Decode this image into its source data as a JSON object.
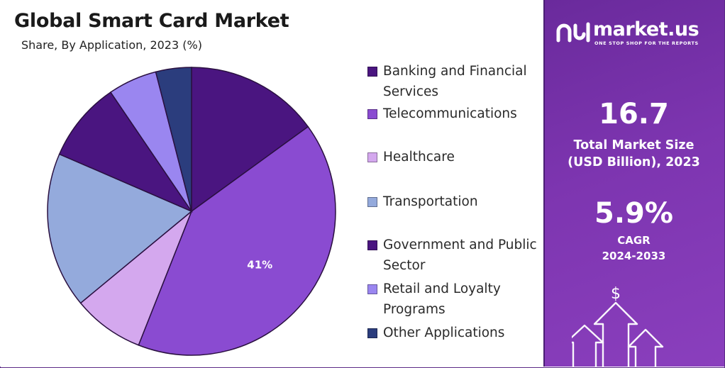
{
  "header": {
    "title": "Global Smart Card Market",
    "subtitle": "Share, By Application, 2023 (%)"
  },
  "chart_data": {
    "type": "pie",
    "title": "Global Smart Card Market",
    "subtitle": "Share, By Application, 2023 (%)",
    "legend_position": "right",
    "slices": [
      {
        "label": "Banking and Financial Services",
        "value": 15,
        "color": "#4a1580",
        "data_label": ""
      },
      {
        "label": "Telecommunications",
        "value": 41,
        "color": "#8a4bd1",
        "data_label": "41%"
      },
      {
        "label": "Healthcare",
        "value": 8,
        "color": "#d4a8ee",
        "data_label": ""
      },
      {
        "label": "Transportation",
        "value": 17.5,
        "color": "#94aadc",
        "data_label": ""
      },
      {
        "label": "Government and Public Sector",
        "value": 9,
        "color": "#4a1580",
        "data_label": ""
      },
      {
        "label": "Retail and Loyalty Programs",
        "value": 5.5,
        "color": "#9a86f0",
        "data_label": ""
      },
      {
        "label": "Other Applications",
        "value": 4,
        "color": "#2b3d7d",
        "data_label": ""
      }
    ]
  },
  "legend": {
    "items": [
      {
        "text": "Banking and Financial Services",
        "color": "#4a1580"
      },
      {
        "text": "Telecommunications",
        "color": "#8a4bd1"
      },
      {
        "text": "Healthcare",
        "color": "#d4a8ee"
      },
      {
        "text": "Transportation",
        "color": "#94aadc"
      },
      {
        "text": "Government and Public Sector",
        "color": "#4a1580"
      },
      {
        "text": "Retail and Loyalty Programs",
        "color": "#9a86f0"
      },
      {
        "text": "Other Applications",
        "color": "#2b3d7d"
      }
    ]
  },
  "panel": {
    "logo_text": "market.us",
    "logo_tagline": "ONE STOP SHOP FOR THE REPORTS",
    "market_size_value": "16.7",
    "market_size_label_line1": "Total Market Size",
    "market_size_label_line2": "(USD Billion), 2023",
    "cagr_value": "5.9%",
    "cagr_label_line1": "CAGR",
    "cagr_label_line2": "2024-2033",
    "currency_symbol": "$"
  },
  "colors": {
    "panel_bg": "#7d35b0",
    "accent_dark": "#4a1580"
  }
}
